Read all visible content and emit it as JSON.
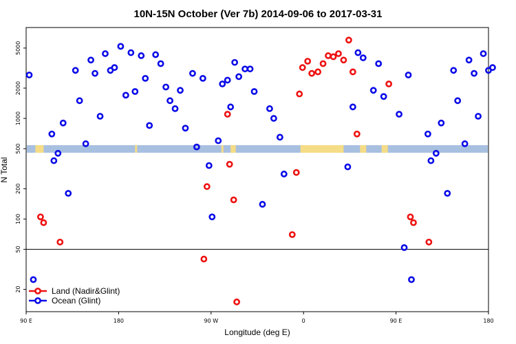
{
  "chart_data": {
    "type": "scatter",
    "title": "10N-15N October (Ver 7b)   2014-09-06 to 2017-03-31",
    "xlabel": "Longitude (deg E)",
    "ylabel": "N Total",
    "x_ticks": [
      {
        "value": 90,
        "label": "90 E"
      },
      {
        "value": 180,
        "label": "180"
      },
      {
        "value": 270,
        "label": "90 W"
      },
      {
        "value": 360,
        "label": "0"
      },
      {
        "value": 450,
        "label": "90 E"
      },
      {
        "value": 540,
        "label": "180"
      }
    ],
    "xlim": [
      90,
      540
    ],
    "y_scale": "log",
    "ylim": [
      12,
      8000
    ],
    "y_ticks": [
      20,
      50,
      100,
      200,
      500,
      1000,
      2000,
      5000
    ],
    "reference_line_y": 50,
    "land_band": {
      "color_ocean": "#a8c0e0",
      "color_land": "#f5dc86",
      "land_ranges": [
        [
          99,
          107
        ],
        [
          196,
          198
        ],
        [
          280,
          282
        ],
        [
          289,
          294
        ],
        [
          357,
          399
        ],
        [
          415,
          421
        ],
        [
          436,
          442
        ]
      ]
    },
    "series": [
      {
        "name": "Land (Nadir&Glint)",
        "color": "#ee1111",
        "points": [
          [
            104,
            105
          ],
          [
            107,
            92
          ],
          [
            123,
            59
          ],
          [
            286,
            1100
          ],
          [
            288,
            350
          ],
          [
            292,
            155
          ],
          [
            263,
            40
          ],
          [
            266,
            210
          ],
          [
            295,
            15
          ],
          [
            349,
            70
          ],
          [
            353,
            290
          ],
          [
            356,
            1750
          ],
          [
            359,
            3200
          ],
          [
            364,
            3700
          ],
          [
            368,
            2800
          ],
          [
            374,
            2900
          ],
          [
            379,
            3500
          ],
          [
            384,
            4200
          ],
          [
            389,
            4100
          ],
          [
            394,
            4400
          ],
          [
            399,
            3800
          ],
          [
            404,
            6000
          ],
          [
            408,
            2900
          ],
          [
            412,
            700
          ],
          [
            443,
            2200
          ],
          [
            464,
            105
          ],
          [
            467,
            92
          ],
          [
            482,
            59
          ]
        ]
      },
      {
        "name": "Ocean (Glint)",
        "color": "#0a0ae8",
        "points": [
          [
            93,
            2700
          ],
          [
            97,
            25
          ],
          [
            115,
            700
          ],
          [
            117,
            380
          ],
          [
            121,
            450
          ],
          [
            126,
            900
          ],
          [
            131,
            180
          ],
          [
            138,
            3000
          ],
          [
            142,
            1500
          ],
          [
            148,
            560
          ],
          [
            153,
            3800
          ],
          [
            157,
            2800
          ],
          [
            162,
            1050
          ],
          [
            167,
            4400
          ],
          [
            172,
            3000
          ],
          [
            176,
            3200
          ],
          [
            182,
            5200
          ],
          [
            187,
            1700
          ],
          [
            192,
            4500
          ],
          [
            196,
            1850
          ],
          [
            202,
            4200
          ],
          [
            206,
            2500
          ],
          [
            210,
            850
          ],
          [
            216,
            4300
          ],
          [
            221,
            3500
          ],
          [
            226,
            2050
          ],
          [
            230,
            1500
          ],
          [
            235,
            1250
          ],
          [
            240,
            1900
          ],
          [
            245,
            800
          ],
          [
            252,
            2800
          ],
          [
            256,
            520
          ],
          [
            262,
            2500
          ],
          [
            268,
            340
          ],
          [
            271,
            105
          ],
          [
            277,
            600
          ],
          [
            281,
            2200
          ],
          [
            286,
            2400
          ],
          [
            289,
            1300
          ],
          [
            293,
            3600
          ],
          [
            297,
            2600
          ],
          [
            303,
            3100
          ],
          [
            308,
            3100
          ],
          [
            312,
            1850
          ],
          [
            320,
            140
          ],
          [
            327,
            1250
          ],
          [
            331,
            1000
          ],
          [
            337,
            650
          ],
          [
            341,
            280
          ],
          [
            403,
            330
          ],
          [
            408,
            1300
          ],
          [
            413,
            4500
          ],
          [
            418,
            4000
          ],
          [
            428,
            1900
          ],
          [
            433,
            3500
          ],
          [
            438,
            1650
          ],
          [
            453,
            1100
          ],
          [
            458,
            52
          ],
          [
            462,
            2700
          ],
          [
            465,
            25
          ],
          [
            481,
            700
          ],
          [
            484,
            380
          ],
          [
            489,
            450
          ],
          [
            494,
            900
          ],
          [
            500,
            180
          ],
          [
            506,
            3000
          ],
          [
            510,
            1500
          ],
          [
            517,
            560
          ],
          [
            521,
            3800
          ],
          [
            526,
            2800
          ],
          [
            530,
            1050
          ],
          [
            535,
            4400
          ],
          [
            540,
            3000
          ],
          [
            544,
            3200
          ]
        ]
      }
    ],
    "legend_position": "bottom-left"
  }
}
